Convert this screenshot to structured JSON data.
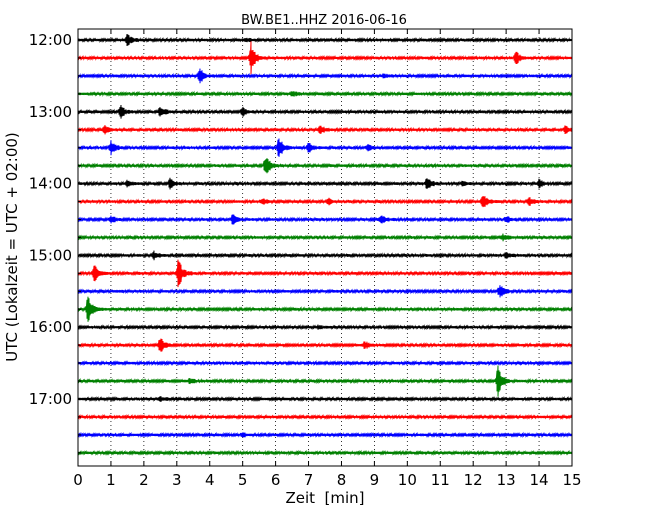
{
  "chart_data": {
    "type": "line",
    "title": "BW.BE1..HHZ 2016-06-16",
    "xlabel": "Zeit  [min]",
    "ylabel": "UTC (Lokalzeit = UTC + 02:00)",
    "xlim": [
      0,
      15
    ],
    "x_ticks": [
      "0",
      "1",
      "2",
      "3",
      "4",
      "5",
      "6",
      "7",
      "8",
      "9",
      "10",
      "11",
      "12",
      "13",
      "14",
      "15"
    ],
    "y_ticks": [
      "12:00",
      "13:00",
      "14:00",
      "15:00",
      "16:00",
      "17:00"
    ],
    "grid": "vertical dotted",
    "trace_interval_min": 15,
    "series_colors": [
      "#000000",
      "#ff0000",
      "#0000ff",
      "#008000"
    ],
    "traces": [
      {
        "start": "12:00",
        "events": [
          [
            1.5,
            6
          ],
          [
            5.1,
            2
          ]
        ]
      },
      {
        "start": "12:15",
        "events": [
          [
            5.25,
            16
          ],
          [
            13.3,
            7
          ]
        ]
      },
      {
        "start": "12:30",
        "events": [
          [
            3.7,
            8
          ],
          [
            9.3,
            2
          ]
        ]
      },
      {
        "start": "12:45",
        "events": [
          [
            6.5,
            3
          ]
        ]
      },
      {
        "start": "13:00",
        "events": [
          [
            1.3,
            6
          ],
          [
            2.5,
            6
          ],
          [
            5.0,
            5
          ]
        ]
      },
      {
        "start": "13:15",
        "events": [
          [
            0.8,
            5
          ],
          [
            7.35,
            5
          ],
          [
            14.8,
            4
          ]
        ]
      },
      {
        "start": "13:30",
        "events": [
          [
            1.0,
            7
          ],
          [
            6.1,
            12
          ],
          [
            7.0,
            5
          ],
          [
            8.8,
            3
          ]
        ]
      },
      {
        "start": "13:45",
        "events": [
          [
            5.7,
            11
          ]
        ]
      },
      {
        "start": "14:00",
        "events": [
          [
            1.5,
            3
          ],
          [
            2.8,
            5
          ],
          [
            10.6,
            7
          ],
          [
            11.7,
            3
          ],
          [
            14.0,
            4
          ]
        ]
      },
      {
        "start": "14:15",
        "events": [
          [
            5.6,
            3
          ],
          [
            7.6,
            3
          ],
          [
            12.3,
            9
          ],
          [
            13.7,
            4
          ]
        ]
      },
      {
        "start": "14:30",
        "events": [
          [
            1.0,
            4
          ],
          [
            4.7,
            5
          ],
          [
            9.2,
            5
          ],
          [
            13.0,
            3
          ]
        ]
      },
      {
        "start": "14:45",
        "events": [
          [
            12.9,
            3
          ]
        ]
      },
      {
        "start": "15:00",
        "events": [
          [
            2.3,
            4
          ],
          [
            13.0,
            3
          ]
        ]
      },
      {
        "start": "15:15",
        "events": [
          [
            0.5,
            9
          ],
          [
            3.05,
            15
          ]
        ]
      },
      {
        "start": "15:30",
        "events": [
          [
            12.8,
            7
          ]
        ]
      },
      {
        "start": "15:45",
        "events": [
          [
            0.3,
            16
          ]
        ]
      },
      {
        "start": "16:00",
        "events": [
          [
            7.3,
            2
          ]
        ]
      },
      {
        "start": "16:15",
        "events": [
          [
            2.5,
            9
          ],
          [
            8.7,
            4
          ]
        ]
      },
      {
        "start": "16:30",
        "events": []
      },
      {
        "start": "16:45",
        "events": [
          [
            3.4,
            3
          ],
          [
            12.75,
            16
          ]
        ]
      },
      {
        "start": "17:00",
        "events": [
          [
            2.5,
            2
          ]
        ]
      },
      {
        "start": "17:15",
        "events": []
      },
      {
        "start": "17:30",
        "events": [
          [
            5.0,
            2
          ]
        ]
      },
      {
        "start": "17:45",
        "events": []
      }
    ]
  }
}
